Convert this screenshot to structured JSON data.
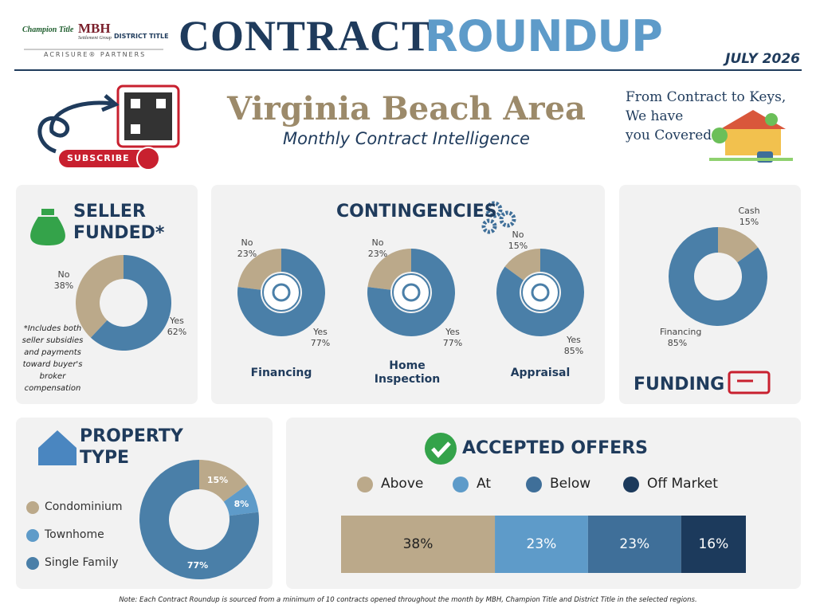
{
  "header": {
    "logo_champion": "Champion Title",
    "logo_mbh": "MBH",
    "logo_mbh_sub": "Settlement Group",
    "logo_district": "DISTRICT TITLE",
    "logo_partners": "ACRISURE® PARTNERS",
    "title_1": "CONTRACT",
    "title_2": "ROUNDUP",
    "date": "JULY 2026"
  },
  "banner": {
    "subscribe": "SUBSCRIBE",
    "region": "Virginia Beach Area",
    "subtitle": "Monthly Contract Intelligence",
    "tagline_1": "From Contract to Keys,",
    "tagline_2": "We have",
    "tagline_3": "you Covered"
  },
  "contingencies_title": "CONTINGENCIES",
  "chart_data": [
    {
      "type": "pie",
      "title": "SELLER FUNDED*",
      "categories": [
        "No",
        "Yes"
      ],
      "values": [
        38,
        62
      ],
      "value_labels": [
        "38%",
        "62%"
      ],
      "colors": [
        "#bba98a",
        "#4a7fa8"
      ],
      "note": "*Includes both seller subsidies and payments toward buyer's broker compensation"
    },
    {
      "type": "pie",
      "title": "Financing",
      "categories": [
        "No",
        "Yes"
      ],
      "values": [
        23,
        77
      ],
      "value_labels": [
        "23%",
        "77%"
      ],
      "colors": [
        "#bba98a",
        "#4a7fa8"
      ]
    },
    {
      "type": "pie",
      "title": "Home Inspection",
      "categories": [
        "No",
        "Yes"
      ],
      "values": [
        23,
        77
      ],
      "value_labels": [
        "23%",
        "77%"
      ],
      "colors": [
        "#bba98a",
        "#4a7fa8"
      ]
    },
    {
      "type": "pie",
      "title": "Appraisal",
      "categories": [
        "No",
        "Yes"
      ],
      "values": [
        15,
        85
      ],
      "value_labels": [
        "15%",
        "85%"
      ],
      "colors": [
        "#bba98a",
        "#4a7fa8"
      ]
    },
    {
      "type": "pie",
      "title": "FUNDING",
      "categories": [
        "Cash",
        "Financing"
      ],
      "values": [
        15,
        85
      ],
      "value_labels": [
        "15%",
        "85%"
      ],
      "colors": [
        "#bba98a",
        "#4a7fa8"
      ]
    },
    {
      "type": "pie",
      "title": "PROPERTY TYPE",
      "categories": [
        "Condominium",
        "Townhome",
        "Single Family"
      ],
      "values": [
        15,
        8,
        77
      ],
      "value_labels": [
        "15%",
        "8%",
        "77%"
      ],
      "colors": [
        "#bba98a",
        "#5e9bc9",
        "#4a7fa8"
      ]
    },
    {
      "type": "stacked_bar",
      "title": "ACCEPTED OFFERS",
      "series": [
        {
          "name": "Above",
          "color": "#bba98a",
          "values": [
            38
          ],
          "value_labels": [
            "38%"
          ]
        },
        {
          "name": "At",
          "color": "#5e9bc9",
          "values": [
            23
          ],
          "value_labels": [
            "23%"
          ]
        },
        {
          "name": "Below",
          "color": "#3f6f99",
          "values": [
            23
          ],
          "value_labels": [
            "23%"
          ]
        },
        {
          "name": "Off Market",
          "color": "#1c3a5c",
          "values": [
            16
          ],
          "value_labels": [
            "16%"
          ]
        }
      ]
    }
  ],
  "footnote": "Note: Each Contract Roundup is sourced from a minimum of 10 contracts opened throughout the month by MBH, Champion Title and District Title in the selected regions."
}
